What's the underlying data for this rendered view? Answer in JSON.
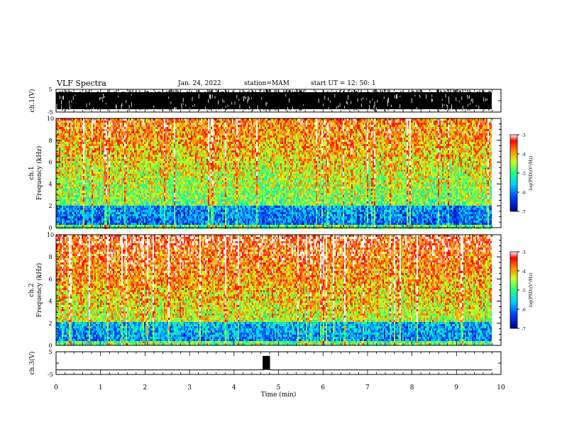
{
  "header": {
    "title": "VLF Spectra",
    "date": "Jan. 24, 2022",
    "station": "station=MAM",
    "start": "start UT =  12: 50: 1"
  },
  "chart_data": [
    {
      "type": "line",
      "ylabel": "ch.1(V)",
      "ylim": [
        -5,
        5
      ],
      "ytick_labels": [
        "5",
        "-5"
      ],
      "xlim": [
        0,
        10
      ],
      "description_note": "dense black waveform saturating the range"
    },
    {
      "type": "heatmap",
      "ylabel_lines": [
        "ch.1",
        "Frequency (kHz)"
      ],
      "xlim": [
        0,
        10
      ],
      "ylim": [
        0,
        10
      ],
      "yticks": [
        "0",
        "2",
        "4",
        "6",
        "8",
        "10"
      ],
      "colorbar": {
        "label": "log(PSD)(V²/Hz)",
        "range": [
          -7,
          -3
        ],
        "ticks": [
          "-3",
          "-4",
          "-5",
          "-6",
          "-7"
        ]
      }
    },
    {
      "type": "heatmap",
      "ylabel_lines": [
        "ch.2",
        "Frequency (kHz)"
      ],
      "xlim": [
        0,
        10
      ],
      "ylim": [
        0,
        10
      ],
      "yticks": [
        "0",
        "2",
        "4",
        "6",
        "8",
        "10"
      ],
      "colorbar": {
        "label": "log(PSD)(V²/Hz)",
        "range": [
          -7,
          -3
        ],
        "ticks": [
          "-3",
          "-4",
          "-5",
          "-6",
          "-7"
        ]
      }
    },
    {
      "type": "line",
      "ylabel": "ch.3(V)",
      "ylim": [
        -5,
        5
      ],
      "ytick_labels": [
        "5",
        "-5"
      ],
      "xlim": [
        0,
        10
      ],
      "x": [
        0,
        4.65,
        4.65,
        4.8,
        4.8,
        9.8
      ],
      "y": [
        -3,
        -3,
        3,
        3,
        -3,
        -3
      ]
    }
  ],
  "x_axis": {
    "label": "Time (min)",
    "ticks": [
      "0",
      "1",
      "2",
      "3",
      "4",
      "5",
      "6",
      "7",
      "8",
      "9",
      "10"
    ]
  }
}
